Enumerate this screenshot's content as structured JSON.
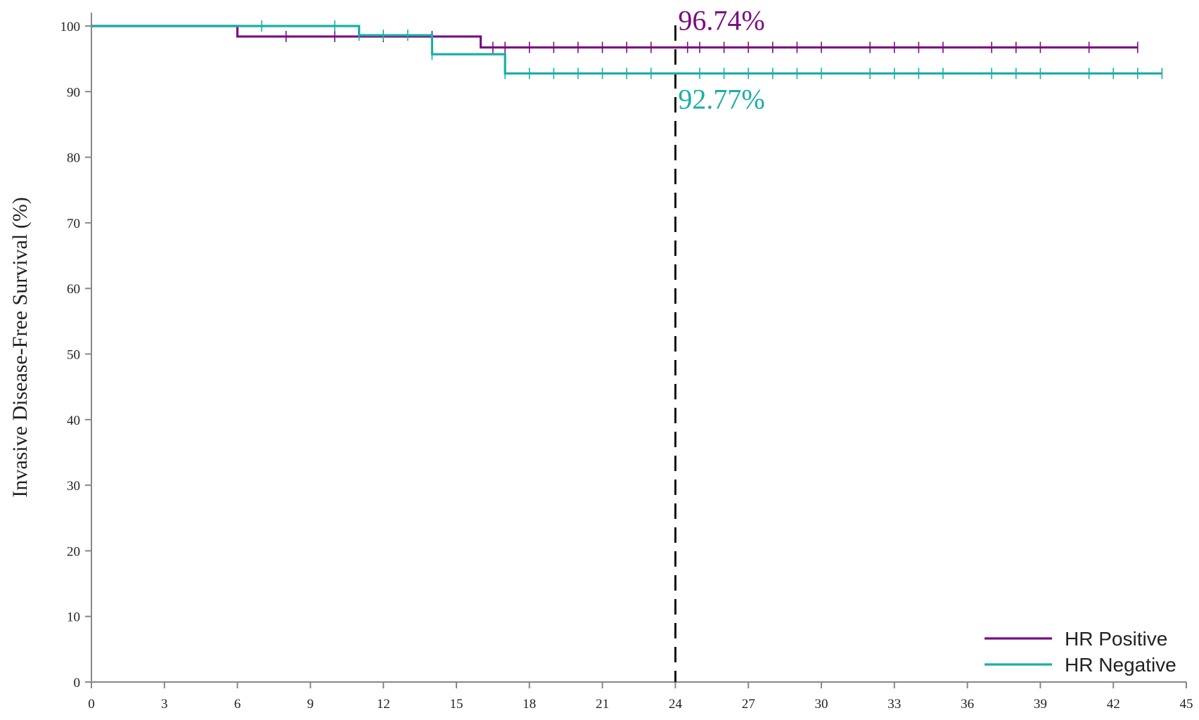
{
  "chart_data": {
    "type": "line",
    "subtype": "kaplan-meier step",
    "title": "",
    "xlabel": "",
    "ylabel": "Invasive Disease-Free Survival (%)",
    "xlim": [
      0,
      45
    ],
    "ylim": [
      0,
      100
    ],
    "xticks": [
      "0",
      "3",
      "6",
      "9",
      "12",
      "15",
      "18",
      "21",
      "24",
      "27",
      "30",
      "33",
      "36",
      "39",
      "42",
      "45"
    ],
    "yticks": [
      "0",
      "10",
      "20",
      "30",
      "40",
      "50",
      "60",
      "70",
      "80",
      "90",
      "100"
    ],
    "grid": false,
    "legend_position": "bottom-right",
    "reference_line": {
      "x": 24,
      "style": "dashed",
      "color": "#111111"
    },
    "series": [
      {
        "name": "HR Positive",
        "color": "#7B0C82",
        "steps": [
          [
            0,
            100
          ],
          [
            6,
            98.4
          ],
          [
            16,
            96.74
          ],
          [
            43,
            96.74
          ]
        ],
        "censored": [
          8,
          10,
          12,
          14,
          16.5,
          17,
          18,
          19,
          20,
          21,
          22,
          23,
          24.5,
          25,
          26,
          27,
          28,
          29,
          30,
          32,
          33,
          34,
          35,
          37,
          38,
          39,
          41,
          43
        ]
      },
      {
        "name": "HR Negative",
        "color": "#1AAFA4",
        "steps": [
          [
            0,
            100
          ],
          [
            11,
            98.6
          ],
          [
            14,
            95.7
          ],
          [
            17,
            92.77
          ],
          [
            44,
            92.77
          ]
        ],
        "censored": [
          7,
          10,
          11,
          12,
          13,
          14,
          17,
          18,
          19,
          20,
          21,
          22,
          23,
          25,
          26,
          27,
          28,
          29,
          30,
          32,
          33,
          34,
          35,
          37,
          38,
          39,
          41,
          42,
          43,
          44
        ]
      }
    ],
    "annotations": [
      {
        "text": "96.74%",
        "color": "#7B0C82",
        "x": 24,
        "y": 96.74
      },
      {
        "text": "92.77%",
        "color": "#1AAFA4",
        "x": 24,
        "y": 92.77
      }
    ]
  }
}
